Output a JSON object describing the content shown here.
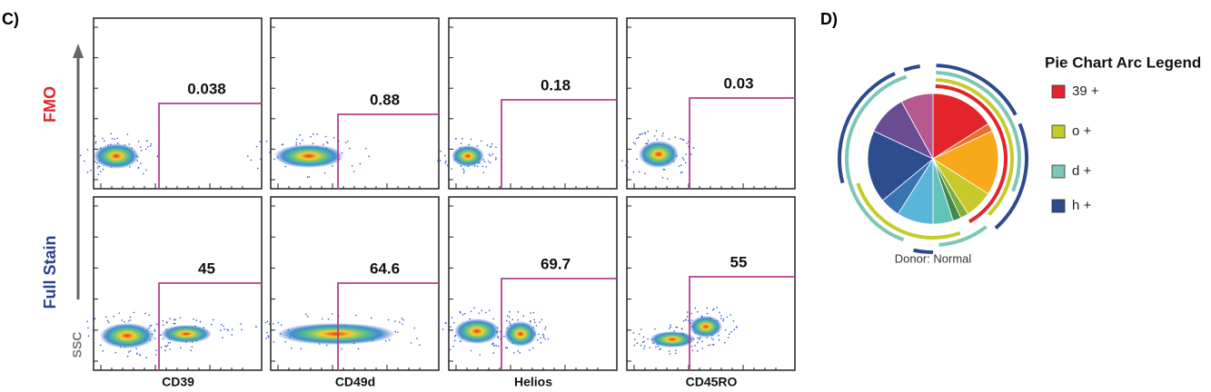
{
  "panel_c": {
    "label": "C)",
    "row_labels": [
      "FMO",
      "Full Stain"
    ],
    "y_axis_label": "SSC",
    "columns": [
      {
        "marker": "CD39",
        "gates": [
          0.038,
          45
        ]
      },
      {
        "marker": "CD49d",
        "gates": [
          0.88,
          64.6
        ]
      },
      {
        "marker": "Helios",
        "gates": [
          0.18,
          69.7
        ]
      },
      {
        "marker": "CD45RO",
        "gates": [
          0.03,
          55
        ]
      }
    ]
  },
  "panel_d": {
    "label": "D)",
    "legend_title": "Pie Chart Arc Legend",
    "caption": "Donor: Normal",
    "legend": [
      {
        "label": "39 +",
        "color": "#e3242b"
      },
      {
        "label": "o +",
        "color": "#c5cc2a"
      },
      {
        "label": "d +",
        "color": "#7cc7b5"
      },
      {
        "label": "h +",
        "color": "#2e4a8c"
      }
    ],
    "slices": [
      {
        "color": "#e3242b",
        "value": 16
      },
      {
        "color": "#e8702a",
        "value": 2
      },
      {
        "color": "#f7a81b",
        "value": 16
      },
      {
        "color": "#c9c92b",
        "value": 7
      },
      {
        "color": "#7fae3a",
        "value": 2
      },
      {
        "color": "#3f8a4a",
        "value": 2
      },
      {
        "color": "#63c3b8",
        "value": 5
      },
      {
        "color": "#5bb5d9",
        "value": 9
      },
      {
        "color": "#3b72b0",
        "value": 5
      },
      {
        "color": "#2d4d8f",
        "value": 18
      },
      {
        "color": "#6a4c93",
        "value": 10
      },
      {
        "color": "#b7588f",
        "value": 8
      }
    ]
  }
}
